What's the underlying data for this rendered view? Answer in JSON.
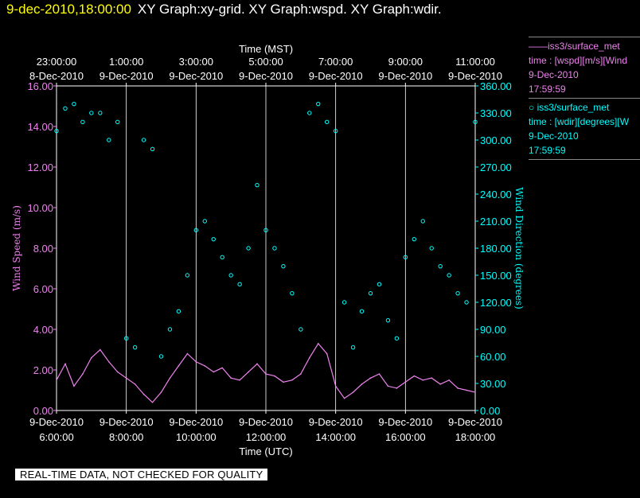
{
  "header": {
    "time": "9-dec-2010,18:00:00",
    "graphs": "XY Graph:xy-grid.  XY Graph:wspd.  XY Graph:wdir."
  },
  "legend": [
    {
      "symbol": "——",
      "name": "iss3/surface_met",
      "desc": "time : [wspd][m/s][Wind",
      "date": "9-Dec-2010",
      "time": "17:59:59"
    },
    {
      "symbol": "○",
      "name": "iss3/surface_met",
      "desc": "time : [wdir][degrees][W",
      "date": "9-Dec-2010",
      "time": "17:59:59"
    }
  ],
  "quality_banner": "REAL-TIME DATA, NOT CHECKED FOR QUALITY",
  "colors": {
    "wspd": "#ee82ee",
    "wdir": "#00ffff",
    "grid": "#ffffff",
    "title_time": "#ffff00",
    "background": "#000000"
  },
  "chart_data": {
    "type": "line",
    "top_axis": {
      "label": "Time (MST)",
      "ticks": [
        {
          "time": "23:00:00",
          "date": "8-Dec-2010"
        },
        {
          "time": "1:00:00",
          "date": "9-Dec-2010"
        },
        {
          "time": "3:00:00",
          "date": "9-Dec-2010"
        },
        {
          "time": "5:00:00",
          "date": "9-Dec-2010"
        },
        {
          "time": "7:00:00",
          "date": "9-Dec-2010"
        },
        {
          "time": "9:00:00",
          "date": "9-Dec-2010"
        },
        {
          "time": "11:00:00",
          "date": "9-Dec-2010"
        }
      ]
    },
    "bottom_axis": {
      "label": "Time (UTC)",
      "ticks": [
        {
          "date": "9-Dec-2010",
          "time": "6:00:00"
        },
        {
          "date": "9-Dec-2010",
          "time": "8:00:00"
        },
        {
          "date": "9-Dec-2010",
          "time": "10:00:00"
        },
        {
          "date": "9-Dec-2010",
          "time": "12:00:00"
        },
        {
          "date": "9-Dec-2010",
          "time": "14:00:00"
        },
        {
          "date": "9-Dec-2010",
          "time": "16:00:00"
        },
        {
          "date": "9-Dec-2010",
          "time": "18:00:00"
        }
      ],
      "range_utc_hours": [
        6.0,
        18.0
      ]
    },
    "left_axis": {
      "label": "Wind Speed (m/s)",
      "range": [
        0,
        16
      ],
      "ticks": [
        "0.00",
        "2.00",
        "4.00",
        "6.00",
        "8.00",
        "10.00",
        "12.00",
        "14.00",
        "16.00"
      ]
    },
    "right_axis": {
      "label": "Wind Direction (degrees)",
      "range": [
        0,
        360
      ],
      "ticks": [
        "0.00",
        "30.00",
        "60.00",
        "90.00",
        "120.00",
        "150.00",
        "180.00",
        "210.00",
        "240.00",
        "270.00",
        "300.00",
        "330.00",
        "360.00"
      ]
    },
    "grid": "vertical",
    "series": [
      {
        "name": "wspd",
        "axis": "left",
        "style": "line",
        "x_utc_hours": [
          6.0,
          6.25,
          6.5,
          6.75,
          7.0,
          7.25,
          7.5,
          7.75,
          8.0,
          8.25,
          8.5,
          8.75,
          9.0,
          9.25,
          9.5,
          9.75,
          10.0,
          10.25,
          10.5,
          10.75,
          11.0,
          11.25,
          11.5,
          11.75,
          12.0,
          12.25,
          12.5,
          12.75,
          13.0,
          13.25,
          13.5,
          13.75,
          14.0,
          14.25,
          14.5,
          14.75,
          15.0,
          15.25,
          15.5,
          15.75,
          16.0,
          16.25,
          16.5,
          16.75,
          17.0,
          17.25,
          17.5,
          17.75,
          18.0
        ],
        "y": [
          1.5,
          2.3,
          1.2,
          1.8,
          2.6,
          3.0,
          2.4,
          1.9,
          1.6,
          1.3,
          0.8,
          0.4,
          0.9,
          1.6,
          2.2,
          2.8,
          2.4,
          2.2,
          1.9,
          2.1,
          1.6,
          1.5,
          1.9,
          2.3,
          1.8,
          1.7,
          1.4,
          1.5,
          1.8,
          2.6,
          3.3,
          2.8,
          1.2,
          0.6,
          0.9,
          1.3,
          1.6,
          1.8,
          1.2,
          1.1,
          1.4,
          1.7,
          1.5,
          1.6,
          1.3,
          1.5,
          1.1,
          1.0,
          0.9
        ]
      },
      {
        "name": "wdir",
        "axis": "right",
        "style": "points",
        "x_utc_hours": [
          6.0,
          6.25,
          6.5,
          6.75,
          7.0,
          7.25,
          7.5,
          7.75,
          8.0,
          8.25,
          8.5,
          8.75,
          9.0,
          9.25,
          9.5,
          9.75,
          10.0,
          10.25,
          10.5,
          10.75,
          11.0,
          11.25,
          11.5,
          11.75,
          12.0,
          12.25,
          12.5,
          12.75,
          13.0,
          13.25,
          13.5,
          13.75,
          14.0,
          14.25,
          14.5,
          14.75,
          15.0,
          15.25,
          15.5,
          15.75,
          16.0,
          16.25,
          16.5,
          16.75,
          17.0,
          17.25,
          17.5,
          17.75,
          18.0
        ],
        "y": [
          310,
          335,
          340,
          320,
          330,
          330,
          300,
          320,
          80,
          70,
          300,
          290,
          60,
          90,
          110,
          150,
          200,
          210,
          190,
          170,
          150,
          140,
          180,
          250,
          200,
          180,
          160,
          130,
          90,
          330,
          340,
          320,
          310,
          120,
          70,
          110,
          130,
          140,
          100,
          80,
          170,
          190,
          210,
          180,
          160,
          150,
          130,
          120,
          320
        ]
      }
    ]
  }
}
